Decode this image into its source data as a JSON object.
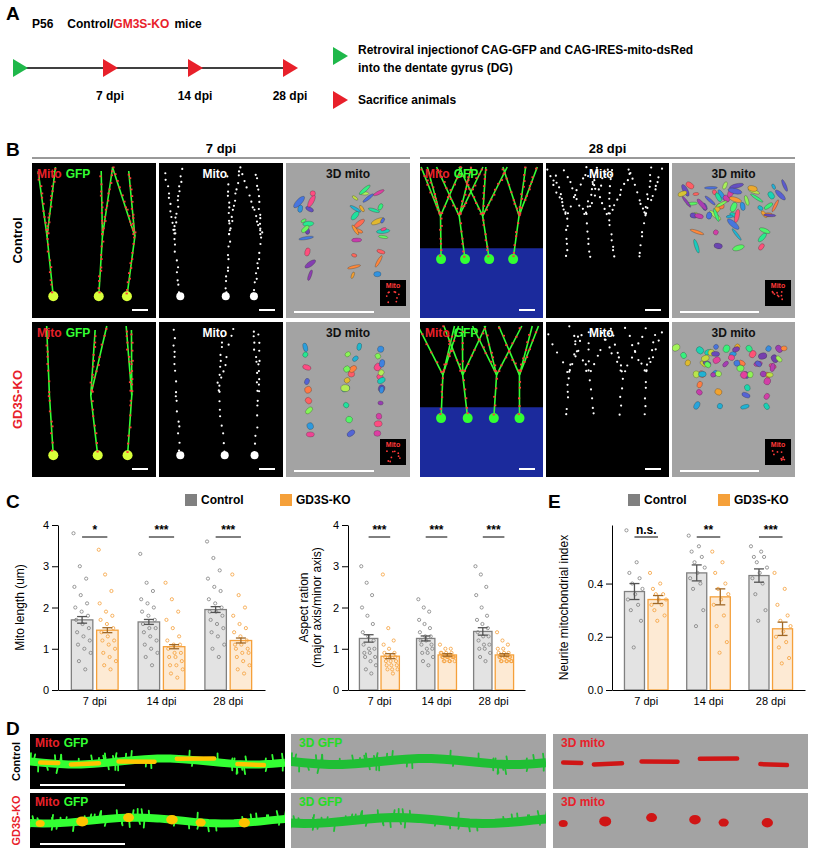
{
  "figure": {
    "panel_labels": [
      "A",
      "B",
      "C",
      "D",
      "E"
    ],
    "A": {
      "title": [
        "P56",
        "Control/",
        "GM3S-KO",
        "mice"
      ],
      "timepoints": [
        "7 dpi",
        "14 dpi",
        "28 dpi"
      ],
      "injection": [
        "Retroviral injectionof CAG-GFP and CAG-IRES-mito-dsRed",
        "into the dentate gyrus (DG)"
      ],
      "sacrifice": "Sacrifice animals"
    },
    "B": {
      "columns": [
        "7 dpi",
        "28 dpi"
      ],
      "rows": [
        "Control",
        "GD3S-KO"
      ],
      "merge": [
        "Mito",
        "GFP"
      ],
      "mito": "Mito",
      "render": "3D mito",
      "inset": "Mito"
    },
    "D": {
      "rows": [
        "Control",
        "GD3S-KO"
      ],
      "merge": [
        "Mito",
        "GFP"
      ],
      "render": [
        "3D GFP",
        "3D mito"
      ]
    }
  },
  "chart_data": [
    {
      "type": "bar",
      "ylabel": "Mito length (um)",
      "categories": [
        "7 dpi",
        "14 dpi",
        "28 dpi"
      ],
      "series": [
        {
          "name": "Control",
          "color": "#808080",
          "values": [
            1.7,
            1.65,
            1.95
          ],
          "errors": [
            0.08,
            0.06,
            0.07
          ],
          "points": [
            [
              3.8,
              3.0,
              2.7,
              2.5,
              2.3,
              2.1,
              2.0,
              1.9,
              1.8,
              1.7,
              1.6,
              1.5,
              1.4,
              1.3,
              1.2,
              1.1,
              1.0,
              0.9,
              0.7,
              0.5
            ],
            [
              3.3,
              2.6,
              2.4,
              2.2,
              2.1,
              2.0,
              1.9,
              1.8,
              1.7,
              1.6,
              1.5,
              1.5,
              1.4,
              1.3,
              1.2,
              1.1,
              1.0,
              0.9,
              0.8,
              0.6
            ],
            [
              3.6,
              3.2,
              2.9,
              2.7,
              2.5,
              2.4,
              2.2,
              2.1,
              2.0,
              1.9,
              1.9,
              1.8,
              1.7,
              1.6,
              1.5,
              1.4,
              1.3,
              1.1,
              1.0,
              0.8
            ]
          ]
        },
        {
          "name": "GD3S-KO",
          "color": "#f5a03a",
          "values": [
            1.45,
            1.05,
            1.2
          ],
          "errors": [
            0.06,
            0.05,
            0.06
          ],
          "points": [
            [
              3.4,
              2.8,
              2.4,
              2.1,
              1.9,
              1.8,
              1.7,
              1.6,
              1.5,
              1.4,
              1.3,
              1.2,
              1.2,
              1.1,
              1.0,
              0.9,
              0.8,
              0.7,
              0.6,
              0.5
            ],
            [
              2.6,
              2.2,
              1.9,
              1.7,
              1.5,
              1.3,
              1.2,
              1.1,
              1.1,
              1.0,
              0.9,
              0.9,
              0.8,
              0.8,
              0.7,
              0.6,
              0.6,
              0.5,
              0.4,
              0.3
            ],
            [
              2.8,
              2.3,
              2.0,
              1.8,
              1.6,
              1.5,
              1.4,
              1.3,
              1.2,
              1.1,
              1.1,
              1.0,
              1.0,
              0.9,
              0.9,
              0.8,
              0.7,
              0.6,
              0.5,
              0.4
            ]
          ]
        }
      ],
      "ylim": [
        0,
        4
      ],
      "yticks": [
        0,
        1,
        2,
        3,
        4
      ],
      "annotations": [
        "*",
        "***",
        "***"
      ],
      "legend": "top"
    },
    {
      "type": "bar",
      "ylabel": [
        "Aspect ration",
        "(major axis/minor axis)"
      ],
      "categories": [
        "7 dpi",
        "14 dpi",
        "28 dpi"
      ],
      "series": [
        {
          "color": "#808080",
          "values": [
            1.25,
            1.25,
            1.42
          ],
          "errors": [
            0.09,
            0.06,
            0.09
          ],
          "points": [
            [
              3.0,
              2.6,
              2.3,
              2.0,
              1.8,
              1.6,
              1.4,
              1.3,
              1.2,
              1.1,
              1.0,
              1.0,
              0.9,
              0.9,
              0.8,
              0.8,
              0.7,
              0.6,
              0.5,
              0.4
            ],
            [
              2.2,
              2.0,
              1.9,
              1.7,
              1.6,
              1.5,
              1.4,
              1.3,
              1.3,
              1.2,
              1.2,
              1.1,
              1.1,
              1.0,
              1.0,
              0.9,
              0.9,
              0.8,
              0.7,
              0.6
            ],
            [
              3.0,
              2.8,
              2.5,
              2.3,
              2.0,
              1.8,
              1.7,
              1.6,
              1.5,
              1.4,
              1.3,
              1.3,
              1.2,
              1.1,
              1.1,
              1.0,
              1.0,
              0.9,
              0.8,
              0.7
            ]
          ]
        },
        {
          "color": "#f5a03a",
          "values": [
            0.82,
            0.85,
            0.85
          ],
          "errors": [
            0.06,
            0.03,
            0.03
          ],
          "points": [
            [
              2.8,
              1.5,
              1.2,
              1.1,
              1.0,
              0.9,
              0.9,
              0.8,
              0.8,
              0.8,
              0.7,
              0.7,
              0.7,
              0.6,
              0.6,
              0.6,
              0.5,
              0.5,
              0.5,
              0.4
            ],
            [
              1.1,
              1.0,
              1.0,
              0.9,
              0.9,
              0.9,
              0.9,
              0.8,
              0.8,
              0.8,
              0.8,
              0.8,
              0.8,
              0.8,
              0.8,
              0.7,
              0.7,
              0.7,
              0.7,
              0.7
            ],
            [
              1.4,
              1.2,
              1.1,
              1.0,
              1.0,
              0.9,
              0.9,
              0.9,
              0.8,
              0.8,
              0.8,
              0.8,
              0.8,
              0.8,
              0.7,
              0.7,
              0.7,
              0.7,
              0.7,
              0.7
            ]
          ]
        }
      ],
      "ylim": [
        0,
        4
      ],
      "yticks": [
        0,
        1,
        2,
        3,
        4
      ],
      "annotations": [
        "***",
        "***",
        "***"
      ]
    },
    {
      "type": "bar",
      "ylabel": "Neurite mitochondrial index",
      "categories": [
        "7 dpi",
        "14 dpi",
        "28 dpi"
      ],
      "series": [
        {
          "name": "Control",
          "color": "#808080",
          "values": [
            0.37,
            0.44,
            0.43
          ],
          "errors": [
            0.03,
            0.03,
            0.025
          ],
          "points": [
            [
              0.6,
              0.48,
              0.44,
              0.42,
              0.4,
              0.38,
              0.36,
              0.34,
              0.32,
              0.3,
              0.26,
              0.16
            ],
            [
              0.58,
              0.54,
              0.52,
              0.5,
              0.48,
              0.46,
              0.44,
              0.42,
              0.4,
              0.38,
              0.3,
              0.24
            ],
            [
              0.54,
              0.52,
              0.5,
              0.5,
              0.48,
              0.46,
              0.44,
              0.42,
              0.4,
              0.36,
              0.3,
              0.26
            ]
          ]
        },
        {
          "name": "GD3S-KO",
          "color": "#f5a03a",
          "values": [
            0.34,
            0.35,
            0.23
          ],
          "errors": [
            0.015,
            0.03,
            0.025
          ],
          "points": [
            [
              0.44,
              0.4,
              0.38,
              0.36,
              0.36,
              0.34,
              0.34,
              0.32,
              0.32,
              0.3,
              0.28,
              0.26
            ],
            [
              0.52,
              0.48,
              0.44,
              0.4,
              0.38,
              0.36,
              0.34,
              0.32,
              0.28,
              0.24,
              0.18,
              0.14
            ],
            [
              0.44,
              0.38,
              0.32,
              0.28,
              0.26,
              0.24,
              0.22,
              0.2,
              0.18,
              0.16,
              0.12,
              0.1
            ]
          ]
        }
      ],
      "ylim": [
        0,
        0.62
      ],
      "yticks": [
        {
          "value": 0,
          "label": "0.0"
        },
        0.2,
        0.4
      ],
      "annotations": [
        "n.s.",
        "**",
        "***"
      ],
      "legend": "top"
    }
  ]
}
